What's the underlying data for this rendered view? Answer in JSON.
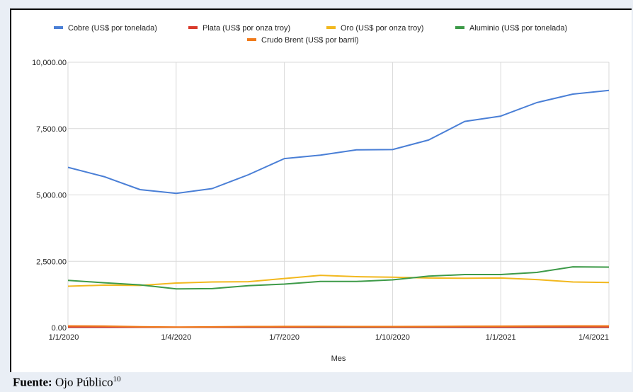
{
  "caption": {
    "label": "Fuente:",
    "source": "Ojo Público",
    "footnote": "10"
  },
  "chart_data": {
    "type": "line",
    "x": [
      "1/1/2020",
      "1/2/2020",
      "1/3/2020",
      "1/4/2020",
      "1/5/2020",
      "1/6/2020",
      "1/7/2020",
      "1/8/2020",
      "1/9/2020",
      "1/10/2020",
      "1/11/2020",
      "1/12/2020",
      "1/1/2021",
      "1/2/2021",
      "1/3/2021",
      "1/4/2021"
    ],
    "x_tick_labels": [
      "1/1/2020",
      "1/4/2020",
      "1/7/2020",
      "1/10/2020",
      "1/1/2021",
      "1/4/2021"
    ],
    "x_tick_index": [
      0,
      3,
      6,
      9,
      12,
      15
    ],
    "xlabel": "Mes",
    "ylabel": "",
    "ylim": [
      0,
      10000
    ],
    "y_ticks": [
      0,
      2500,
      5000,
      7500,
      10000
    ],
    "y_tick_labels": [
      "0.00",
      "2,500.00",
      "5,000.00",
      "7,500.00",
      "10,000.00"
    ],
    "grid": "vertical-at-x-ticks and horizontal",
    "legend_position": "top",
    "series": [
      {
        "name": "Cobre (US$ por tonelada)",
        "color": "#4a7fd6",
        "values": [
          6040,
          5690,
          5200,
          5060,
          5240,
          5760,
          6370,
          6500,
          6700,
          6710,
          7070,
          7770,
          7970,
          8480,
          8800,
          8940
        ]
      },
      {
        "name": "Plata (US$ por onza troy)",
        "color": "#d93a2b",
        "values": [
          18,
          18,
          16,
          15,
          16,
          18,
          21,
          27,
          26,
          24,
          23,
          24,
          25,
          27,
          26,
          25
        ]
      },
      {
        "name": "Oro (US$ por onza troy)",
        "color": "#f2b81e",
        "values": [
          1560,
          1600,
          1590,
          1680,
          1720,
          1730,
          1850,
          1970,
          1920,
          1900,
          1870,
          1860,
          1870,
          1810,
          1720,
          1700
        ]
      },
      {
        "name": "Aluminio (US$ por tonelada)",
        "color": "#3d9a48",
        "values": [
          1780,
          1690,
          1610,
          1460,
          1470,
          1580,
          1640,
          1740,
          1740,
          1800,
          1940,
          2000,
          2000,
          2080,
          2290,
          2280
        ]
      },
      {
        "name": "Crudo Brent (US$ por barril)",
        "color": "#f07a1a",
        "values": [
          64,
          55,
          33,
          20,
          29,
          40,
          43,
          44,
          41,
          40,
          43,
          50,
          54,
          62,
          65,
          65
        ]
      }
    ]
  }
}
